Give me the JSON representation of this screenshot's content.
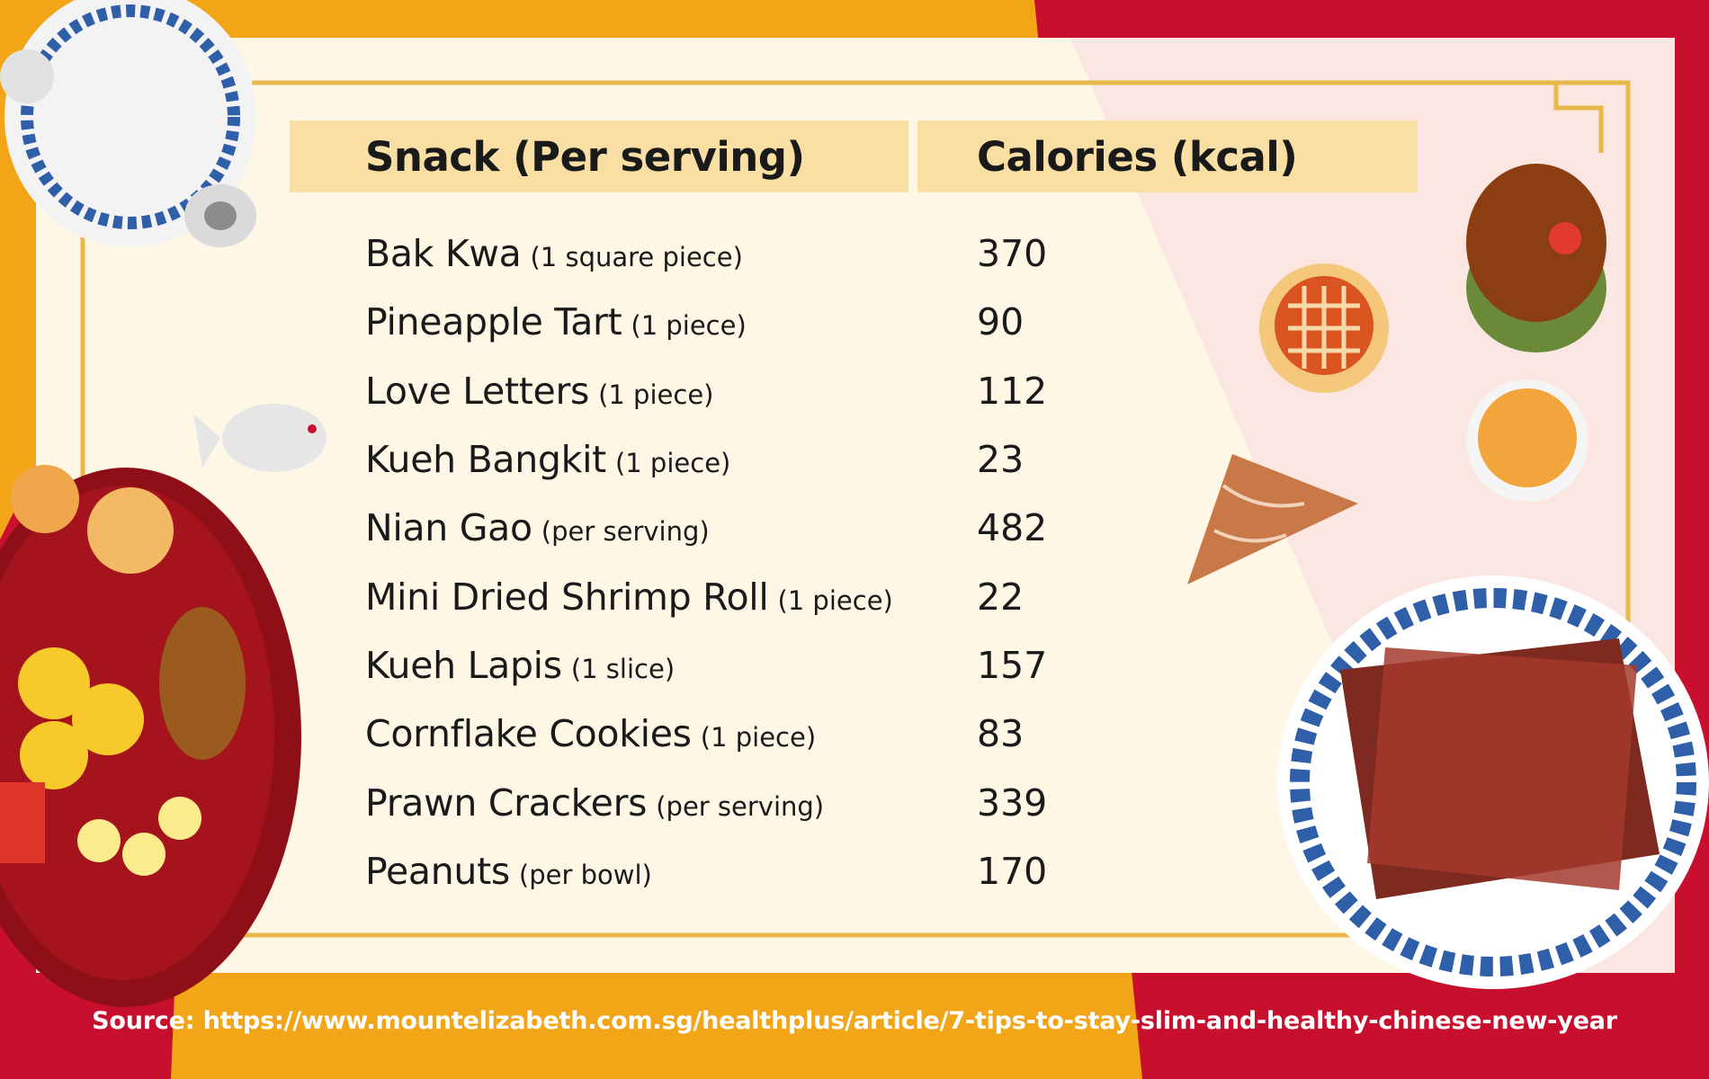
{
  "table": {
    "header_snack": "Snack (Per serving)",
    "header_calories": "Calories (kcal)",
    "rows": [
      {
        "name": "Bak Kwa",
        "portion": "(1 square piece)",
        "calories": "370"
      },
      {
        "name": "Pineapple Tart",
        "portion": "(1 piece)",
        "calories": "90"
      },
      {
        "name": "Love Letters",
        "portion": "(1 piece)",
        "calories": "112"
      },
      {
        "name": "Kueh Bangkit",
        "portion": "(1 piece)",
        "calories": "23"
      },
      {
        "name": "Nian Gao",
        "portion": "(per serving)",
        "calories": "482"
      },
      {
        "name": "Mini Dried Shrimp Roll",
        "portion": "(1 piece)",
        "calories": "22"
      },
      {
        "name": "Kueh Lapis",
        "portion": "(1 slice)",
        "calories": "157"
      },
      {
        "name": "Cornflake Cookies",
        "portion": "(1 piece)",
        "calories": "83"
      },
      {
        "name": "Prawn Crackers",
        "portion": "(per serving)",
        "calories": "339"
      },
      {
        "name": "Peanuts",
        "portion": "(per bowl)",
        "calories": "170"
      }
    ]
  },
  "source": "Source: https://www.mountelizabeth.com.sg/healthplus/article/7-tips-to-stay-slim-and-healthy-chinese-new-year",
  "colors": {
    "red": "#C8102E",
    "orange": "#F2A516",
    "card": "#FFF7E6",
    "header": "#F9DFA3",
    "gold_line": "#E8B94A"
  },
  "illustrations": [
    "teapot-icon",
    "snack-tray-icon",
    "fish-cookie-icon",
    "pineapple-tart-icon",
    "nian-gao-icon",
    "tea-cup-icon",
    "love-letter-icon",
    "bak-kwa-plate-icon"
  ]
}
